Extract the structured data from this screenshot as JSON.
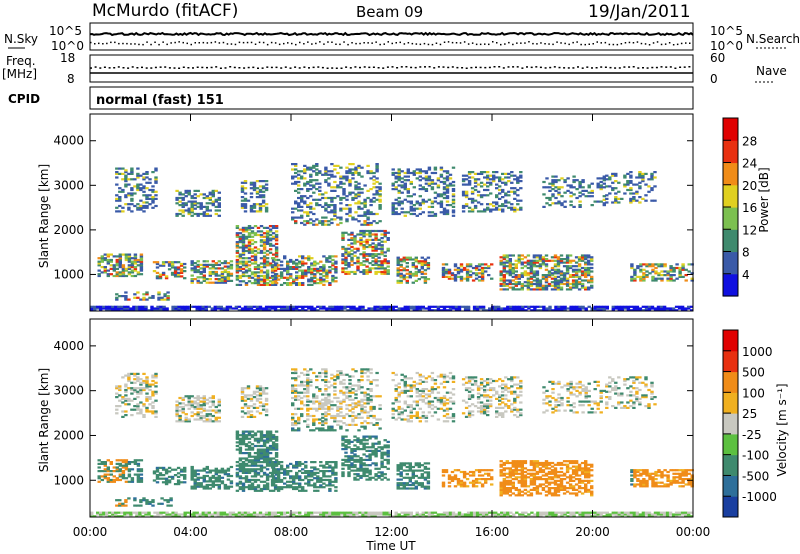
{
  "header": {
    "station": "McMurdo (fitACF)",
    "beam": "Beam 09",
    "date": "19/Jan/2011"
  },
  "noise_panel": {
    "left_label": "N.Sky",
    "left_ticks": [
      "10^5",
      "10^0"
    ],
    "right_ticks": [
      "10^5",
      "10^0"
    ],
    "right_label": "N.Search"
  },
  "freq_panel": {
    "left_label_1": "Freq.",
    "left_label_2": "[MHz]",
    "left_ticks": [
      "18",
      "8"
    ],
    "right_ticks": [
      "60",
      "0"
    ],
    "right_label": "Nave"
  },
  "cpid_panel": {
    "label": "CPID",
    "value": "normal (fast) 151"
  },
  "chart_data": [
    {
      "type": "heatmap",
      "name": "power",
      "ylabel": "Slant Range [km]",
      "y_ticks": [
        1000,
        2000,
        3000,
        4000
      ],
      "ylim": [
        180,
        4600
      ],
      "x_ticks": [
        "00:00",
        "04:00",
        "08:00",
        "12:00",
        "16:00",
        "20:00",
        "00:00"
      ],
      "xlim_hours": [
        0,
        24
      ],
      "colorbar_label": "Power [dB]",
      "colorbar_ticks": [
        4,
        8,
        12,
        16,
        20,
        24,
        28
      ],
      "colorbar_colors": [
        "#1010e0",
        "#3a5aa8",
        "#3f8a6e",
        "#7cc050",
        "#e0d020",
        "#f08c18",
        "#e83010",
        "#e00000"
      ]
    },
    {
      "type": "heatmap",
      "name": "velocity",
      "ylabel": "Slant Range [km]",
      "y_ticks": [
        1000,
        2000,
        3000,
        4000
      ],
      "ylim": [
        180,
        4600
      ],
      "x_ticks": [
        "00:00",
        "04:00",
        "08:00",
        "12:00",
        "16:00",
        "20:00",
        "00:00"
      ],
      "xlim_hours": [
        0,
        24
      ],
      "xlabel": "Time UT",
      "colorbar_label": "Velocity [m s⁻¹]",
      "colorbar_ticks": [
        "1000",
        "500",
        "100",
        "25",
        "-25",
        "-100",
        "-500",
        "-1000"
      ],
      "colorbar_colors": [
        "#1a3fa0",
        "#2e6f9a",
        "#3f8a6e",
        "#5cc040",
        "#c8c8c0",
        "#f0b020",
        "#f08c18",
        "#e83010",
        "#e00000"
      ]
    }
  ]
}
